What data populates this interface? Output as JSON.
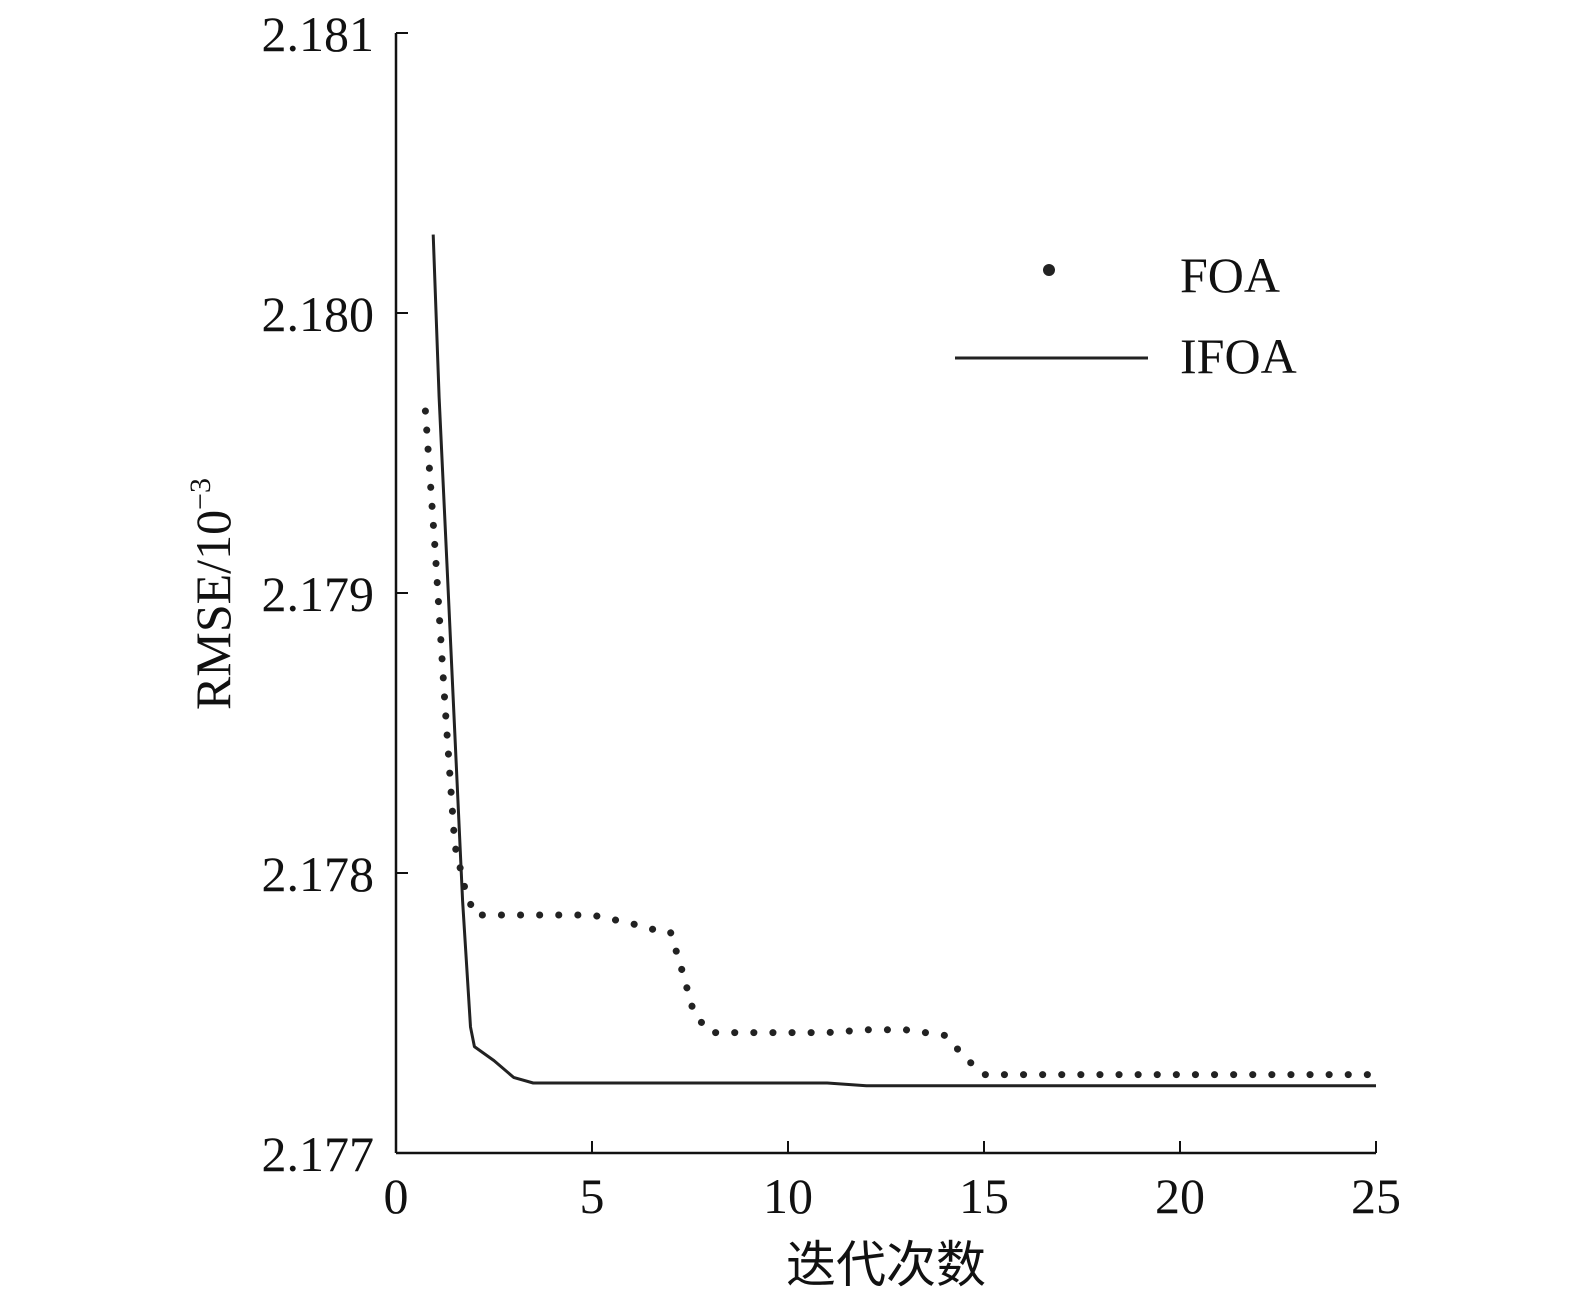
{
  "chart_data": {
    "type": "line",
    "title": "",
    "xlabel": "迭代次数",
    "ylabel": "RMSE/10",
    "ylabel_exponent": "−3",
    "xlim": [
      0,
      25
    ],
    "ylim": [
      2.177,
      2.181
    ],
    "xticks": [
      0,
      5,
      10,
      15,
      20,
      25
    ],
    "yticks": [
      2.177,
      2.178,
      2.179,
      2.18,
      2.181
    ],
    "xtick_labels": [
      "0",
      "5",
      "10",
      "15",
      "20",
      "25"
    ],
    "ytick_labels": [
      "2.177",
      "2.178",
      "2.179",
      "2.180",
      "2.181"
    ],
    "grid": false,
    "legend_position": "top-right",
    "series": [
      {
        "name": "FOA",
        "style": "dotted",
        "color": "#222222",
        "x": [
          0.75,
          1.0,
          1.25,
          1.5,
          1.75,
          2.0,
          3.0,
          4.0,
          5.0,
          6.0,
          6.5,
          7.0,
          7.3,
          7.6,
          8.0,
          9.0,
          10.0,
          11.0,
          12.0,
          13.0,
          14.0,
          14.6,
          15.0,
          16.0,
          17.0,
          18.0,
          19.0,
          20.0,
          21.0,
          22.0,
          23.0,
          24.0,
          24.8
        ],
        "y": [
          2.17965,
          2.17915,
          2.1786,
          2.1781,
          2.17795,
          2.17785,
          2.17785,
          2.17785,
          2.17785,
          2.17782,
          2.1778,
          2.17779,
          2.17765,
          2.1775,
          2.17743,
          2.17743,
          2.17743,
          2.17743,
          2.17744,
          2.17744,
          2.17742,
          2.17733,
          2.17728,
          2.17728,
          2.17728,
          2.17728,
          2.17728,
          2.17728,
          2.17728,
          2.17728,
          2.17728,
          2.17728,
          2.17728
        ]
      },
      {
        "name": "IFOA",
        "style": "solid",
        "color": "#222222",
        "x": [
          0.95,
          1.1,
          1.3,
          1.5,
          1.7,
          1.9,
          2.0,
          2.5,
          3.0,
          3.5,
          4.0,
          5.0,
          8.0,
          11.0,
          12.0,
          15.0,
          20.0,
          25.0
        ],
        "y": [
          2.18028,
          2.1797,
          2.1791,
          2.1785,
          2.1779,
          2.17745,
          2.17738,
          2.17733,
          2.17727,
          2.17725,
          2.17725,
          2.17725,
          2.17725,
          2.17725,
          2.17724,
          2.17724,
          2.17724,
          2.17724
        ]
      }
    ]
  }
}
